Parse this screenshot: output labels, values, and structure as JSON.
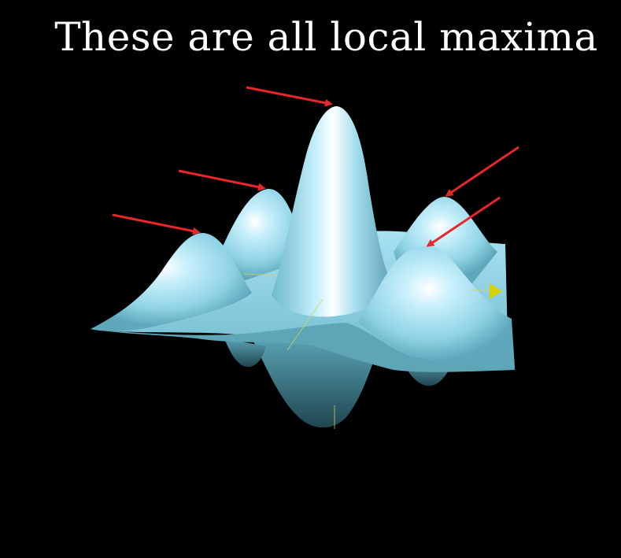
{
  "title": "These are all local maxima",
  "colors": {
    "background": "#000000",
    "surface": "#8fd3e6",
    "surface_shadow": "#2c5a66",
    "arrow": "#e8272b",
    "axis": "#d8d84a"
  },
  "annotations": {
    "arrow_count": 5,
    "arrow_target": "local maxima peaks"
  }
}
